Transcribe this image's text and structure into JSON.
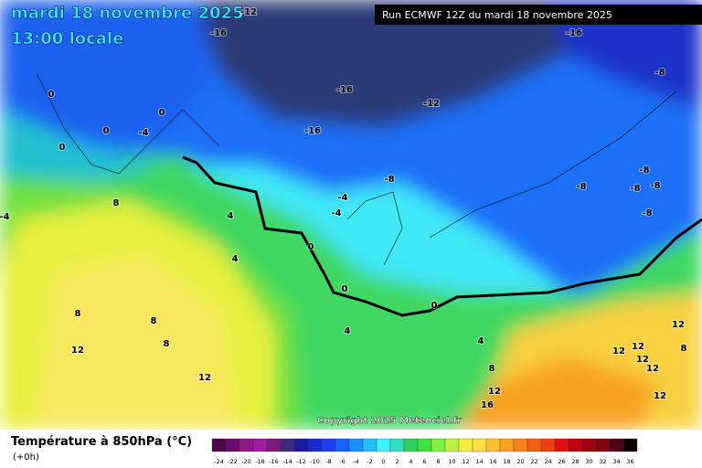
{
  "header": {
    "date": "mardi 18 novembre 2025",
    "time": "13:00 locale",
    "run": "Run ECMWF 12Z du mardi 18 novembre 2025"
  },
  "copyright": "Copyright 2025 Meteociel.fr",
  "contour_labels": [
    -12,
    -16,
    -16,
    -8,
    -16,
    -12,
    -16,
    0,
    0,
    0,
    -4,
    0,
    -8,
    -4,
    -4,
    4,
    8,
    -8,
    -8,
    -8,
    -8,
    -8,
    -4,
    0,
    4,
    0,
    0,
    8,
    8,
    8,
    4,
    4,
    12,
    12,
    12,
    12,
    8,
    12,
    8,
    12,
    12,
    12,
    12,
    16
  ],
  "legend": {
    "title": "Température à 850hPa (°C)",
    "subtitle": "(+0h)",
    "ticks": [
      -24,
      -22,
      -20,
      -18,
      -16,
      -14,
      -12,
      -10,
      -8,
      -6,
      -4,
      -2,
      0,
      2,
      4,
      6,
      8,
      10,
      12,
      14,
      16,
      18,
      20,
      22,
      24,
      26,
      28,
      30,
      32,
      34,
      36
    ],
    "colors": [
      "#4a0a4a",
      "#6a0a6a",
      "#8a1a8a",
      "#a01aa0",
      "#7a1a7a",
      "#3a2a7a",
      "#1a1aa0",
      "#1a2ad0",
      "#1a40f0",
      "#1a60ff",
      "#1a90ff",
      "#20c0ff",
      "#40f0ff",
      "#30e0c0",
      "#30d060",
      "#40e040",
      "#80f040",
      "#c0f040",
      "#f0f040",
      "#f8e040",
      "#f8c030",
      "#f8a020",
      "#f88020",
      "#f06010",
      "#f04010",
      "#e01010",
      "#c00010",
      "#a00010",
      "#800010",
      "#500010",
      "#100000"
    ]
  }
}
